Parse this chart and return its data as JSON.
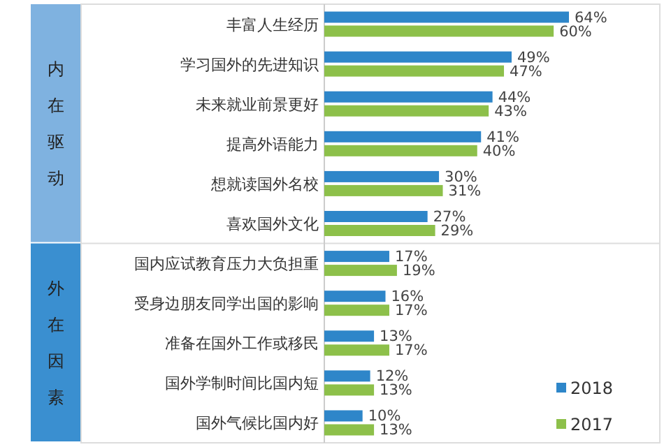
{
  "chart_data": {
    "type": "bar",
    "orientation": "horizontal",
    "categories": [
      "丰富人生经历",
      "学习国外的先进知识",
      "未来就业前景更好",
      "提高外语能力",
      "想就读国外名校",
      "喜欢国外文化",
      "国内应试教育压力大负担重",
      "受身边朋友同学出国的影响",
      "准备在国外工作或移民",
      "国外学制时间比国内短",
      "国外气候比国内好"
    ],
    "series": [
      {
        "name": "2018",
        "color": "#2e86c9",
        "values": [
          64,
          49,
          44,
          41,
          30,
          27,
          17,
          16,
          13,
          12,
          10
        ],
        "value_labels": [
          "64%",
          "49%",
          "44%",
          "41%",
          "30%",
          "27%",
          "17%",
          "16%",
          "13%",
          "12%",
          "10%"
        ]
      },
      {
        "name": "2017",
        "color": "#8dc04a",
        "values": [
          60,
          47,
          43,
          40,
          31,
          29,
          19,
          17,
          17,
          13,
          13
        ],
        "value_labels": [
          "60%",
          "47%",
          "43%",
          "40%",
          "31%",
          "29%",
          "19%",
          "17%",
          "17%",
          "13%",
          "13%"
        ]
      }
    ],
    "legend": "bottom right",
    "annotations": [
      "内在驱动",
      "外在因素"
    ]
  }
}
